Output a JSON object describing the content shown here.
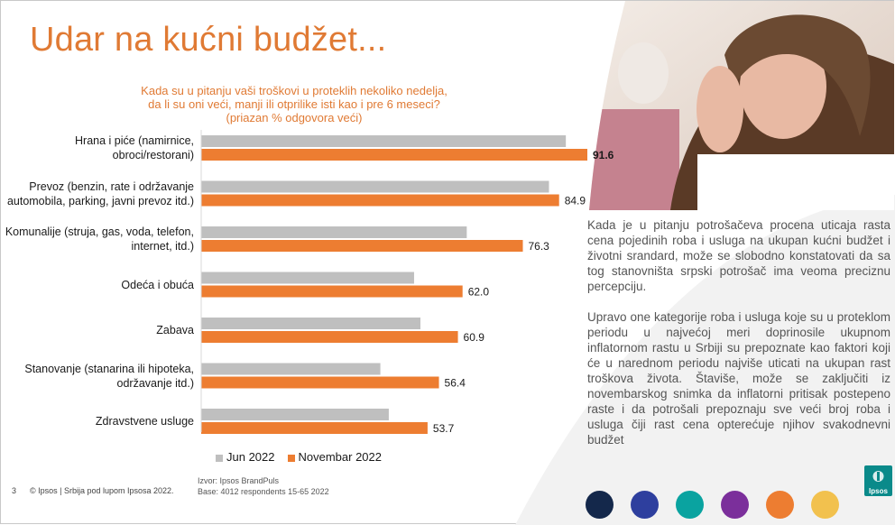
{
  "slide": {
    "title": "Udar na kućni budžet...",
    "question": {
      "line1": "Kada su u pitanju vaši troškovi u proteklih nekoliko nedelja,",
      "line2": "da li su oni veći, manji ili otprilike isti kao i pre 6 meseci?",
      "line3": "(priazan % odgovora veći)"
    },
    "paragraph1": "Kada je u pitanju potrošačeva procena uticaja rasta cena pojedinih roba i usluga na ukupan kućni budžet i životni srandard, može se slobodno konstatovati da sa tog stanovništa srpski potrošač ima veoma preciznu percepciju.",
    "paragraph2": "Upravo one kategorije roba i usluga koje su u proteklom periodu u najvećoj meri doprinosile ukupnom inflatornom rastu u Srbiji su prepoznate kao faktori koji će u narednom periodu najviše uticati na ukupan rast troškova života. Štaviše, može se zaključiti iz novembarskog snimka da inflatorni pritisak postepeno raste i da potrošali prepoznaju sve veći broj roba i usluga čiji rast cena opterećuje njihov svakodnevni budžet",
    "footer": {
      "page_number": "3",
      "copyright": "© Ipsos | Srbija pod lupom Ipsosa 2022.",
      "source_line1": "Izvor: Ipsos BrandPuls",
      "source_line2": "Base: 4012 respondents 15-65 2022"
    },
    "logo_text": "Ipsos",
    "colors": {
      "accent": "#e07a34",
      "jun": "#bfbfbf",
      "nov": "#ed7d31",
      "dots": [
        "#14284b",
        "#2e3f9e",
        "#0aa3a0",
        "#7b2f9b",
        "#ed7d31",
        "#f2c14e"
      ]
    }
  },
  "chart_data": {
    "type": "bar",
    "orientation": "horizontal",
    "categories": [
      [
        "Hrana i piće (namirnice,",
        "obroci/restorani)"
      ],
      [
        "Prevoz (benzin, rate i održavanje",
        "automobila, parking, javni prevoz itd.)"
      ],
      [
        "Komunalije (struja, gas, voda, telefon,",
        "internet, itd.)"
      ],
      [
        "Odeća i obuća"
      ],
      [
        "Zabava"
      ],
      [
        "Stanovanje (stanarina ili hipoteka,",
        "održavanje itd.)"
      ],
      [
        "Zdravstvene usluge"
      ]
    ],
    "series": [
      {
        "name": "Jun 2022",
        "values": [
          86.5,
          82.5,
          63,
          50.5,
          52,
          42.5,
          44.5
        ],
        "labels": [
          "",
          "",
          "",
          "",
          "",
          "",
          ""
        ]
      },
      {
        "name": "Novembar 2022",
        "values": [
          91.6,
          84.9,
          76.3,
          62.0,
          60.9,
          56.4,
          53.7
        ],
        "labels": [
          "91.6",
          "84.9",
          "76.3",
          "62.0",
          "60.9",
          "56.4",
          "53.7"
        ]
      }
    ],
    "xlim": [
      0,
      100
    ],
    "legend": "bottom"
  }
}
